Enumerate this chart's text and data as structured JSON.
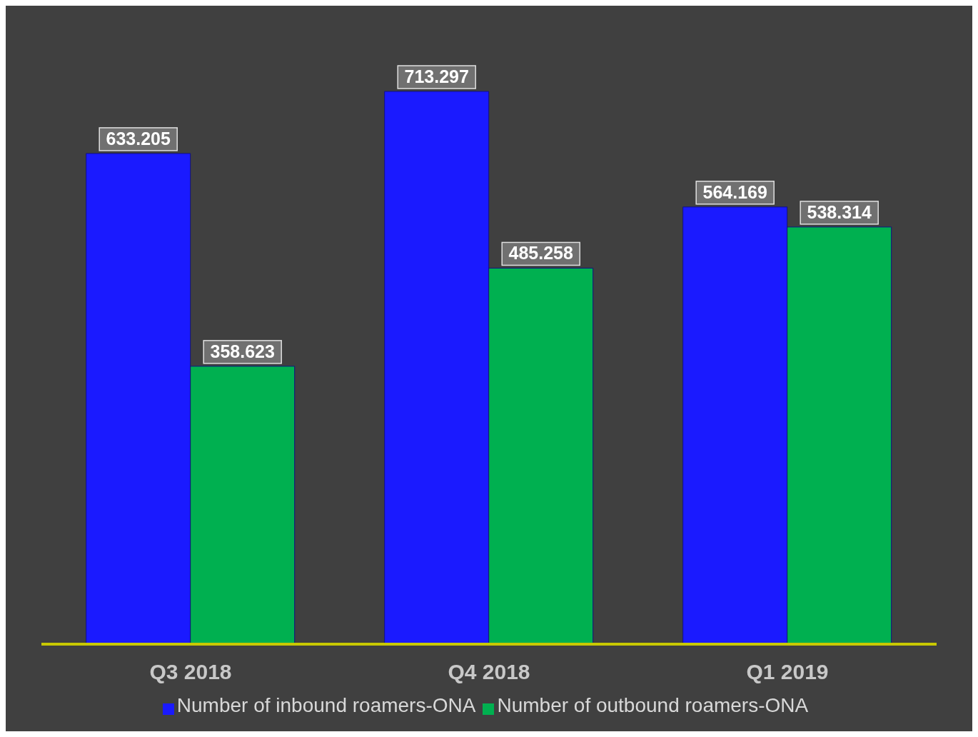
{
  "chart_data": {
    "type": "bar",
    "categories": [
      "Q3 2018",
      "Q4 2018",
      "Q1 2019"
    ],
    "series": [
      {
        "name": "Number of inbound roamers-ONA",
        "color": "#1a1aff",
        "values": [
          633.205,
          713.297,
          564.169
        ]
      },
      {
        "name": "Number of outbound roamers-ONA",
        "color": "#00b050",
        "values": [
          358.623,
          485.258,
          538.314
        ]
      }
    ],
    "data_labels": true,
    "legend": "bottom",
    "grid": false
  }
}
